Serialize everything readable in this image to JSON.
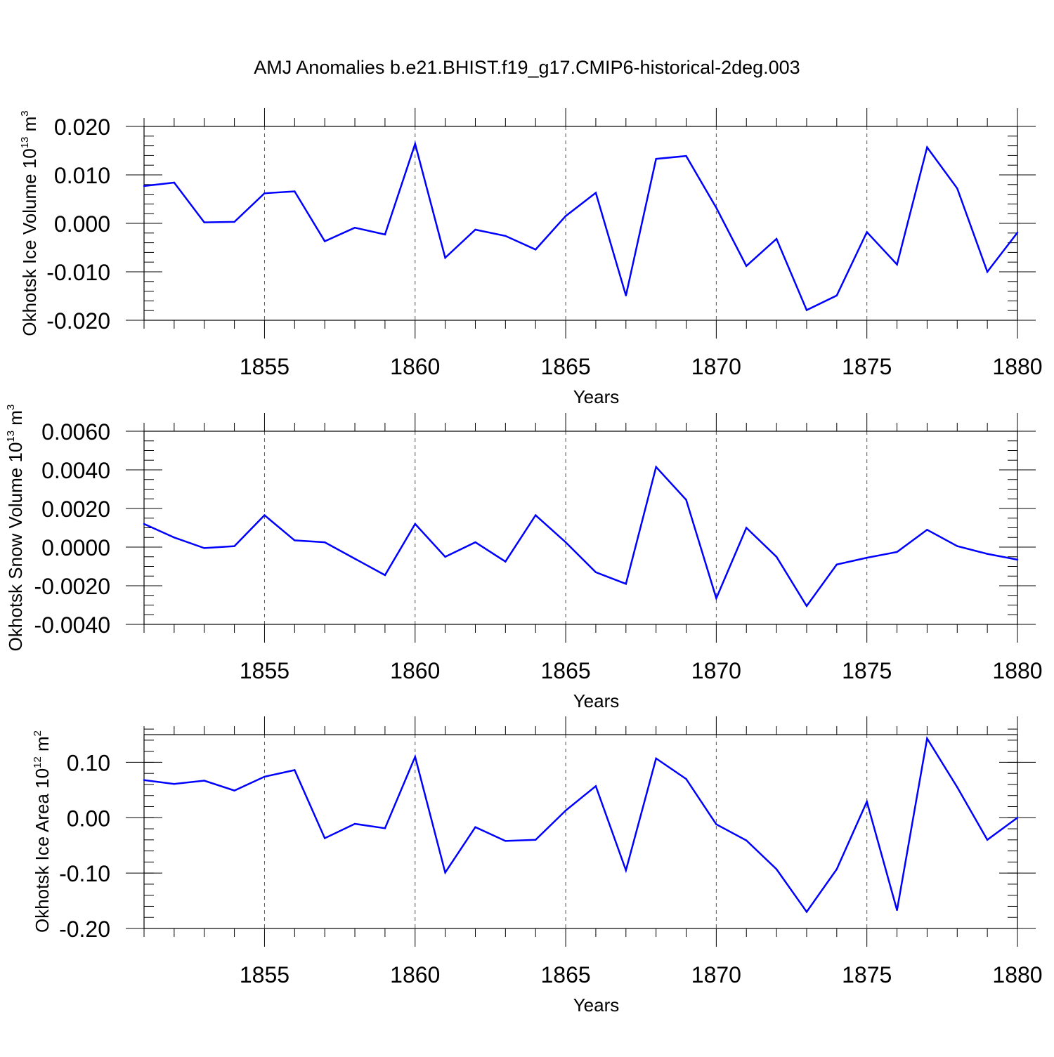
{
  "title": "AMJ Anomalies b.e21.BHIST.f19_g17.CMIP6-historical-2deg.003",
  "colors": {
    "line": "#0000ff",
    "frame": "#000000",
    "grid": "#555555"
  },
  "chart_data": [
    {
      "type": "line",
      "ylabel": {
        "text": "Okhotsk Ice Volume 10",
        "sup": "13",
        "unit": " m",
        "unit_sup": "3"
      },
      "xlabel": "Years",
      "xlim": [
        1851,
        1880
      ],
      "ylim": [
        -0.02,
        0.02
      ],
      "x_ticks": [
        1855,
        1860,
        1865,
        1870,
        1875,
        1880
      ],
      "x_tick_labels": [
        "1855",
        "1860",
        "1865",
        "1870",
        "1875",
        "1880"
      ],
      "y_ticks": [
        0.02,
        0.01,
        0.0,
        -0.01,
        -0.02
      ],
      "y_tick_labels": [
        "0.020",
        "0.010",
        "0.000",
        "-0.010",
        "-0.020"
      ],
      "y_minor_step": 0.002,
      "x": [
        1851,
        1852,
        1853,
        1854,
        1855,
        1856,
        1857,
        1858,
        1859,
        1860,
        1861,
        1862,
        1863,
        1864,
        1865,
        1866,
        1867,
        1868,
        1869,
        1870,
        1871,
        1872,
        1873,
        1874,
        1875,
        1876,
        1877,
        1878,
        1879,
        1880
      ],
      "values": [
        0.0077,
        0.0084,
        0.0002,
        0.0003,
        0.0062,
        0.0066,
        -0.0037,
        -0.0009,
        -0.0023,
        0.0164,
        -0.0071,
        -0.0013,
        -0.0026,
        -0.0054,
        0.0015,
        0.0063,
        -0.0149,
        0.0133,
        0.0139,
        0.0032,
        -0.0088,
        -0.0032,
        -0.0179,
        -0.0149,
        -0.0018,
        -0.0085,
        0.0157,
        0.0072,
        -0.01,
        -0.0019
      ]
    },
    {
      "type": "line",
      "ylabel": {
        "text": "Okhotsk Snow Volume 10",
        "sup": "13",
        "unit": " m",
        "unit_sup": "3"
      },
      "xlabel": "Years",
      "xlim": [
        1851,
        1880
      ],
      "ylim": [
        -0.004,
        0.006
      ],
      "x_ticks": [
        1855,
        1860,
        1865,
        1870,
        1875,
        1880
      ],
      "x_tick_labels": [
        "1855",
        "1860",
        "1865",
        "1870",
        "1875",
        "1880"
      ],
      "y_ticks": [
        0.006,
        0.004,
        0.002,
        0.0,
        -0.002,
        -0.004
      ],
      "y_tick_labels": [
        "0.0060",
        "0.0040",
        "0.0020",
        "0.0000",
        "-0.0020",
        "-0.0040"
      ],
      "y_minor_step": 0.0005,
      "x": [
        1851,
        1852,
        1853,
        1854,
        1855,
        1856,
        1857,
        1858,
        1859,
        1860,
        1861,
        1862,
        1863,
        1864,
        1865,
        1866,
        1867,
        1868,
        1869,
        1870,
        1871,
        1872,
        1873,
        1874,
        1875,
        1876,
        1877,
        1878,
        1879,
        1880
      ],
      "values": [
        0.0012,
        0.0005,
        -5e-05,
        5e-05,
        0.00165,
        0.00035,
        0.00025,
        -0.0006,
        -0.00145,
        0.0012,
        -0.0005,
        0.00025,
        -0.00075,
        0.00165,
        0.00025,
        -0.0013,
        -0.0019,
        0.00415,
        0.00245,
        -0.00265,
        0.001,
        -0.0005,
        -0.00305,
        -0.0009,
        -0.00055,
        -0.00025,
        0.0009,
        5e-05,
        -0.00035,
        -0.00065
      ]
    },
    {
      "type": "line",
      "ylabel": {
        "text": "Okhotsk Ice Area 10",
        "sup": "12",
        "unit": " m",
        "unit_sup": "2"
      },
      "xlabel": "Years",
      "xlim": [
        1851,
        1880
      ],
      "ylim": [
        -0.2,
        0.15
      ],
      "x_ticks": [
        1855,
        1860,
        1865,
        1870,
        1875,
        1880
      ],
      "x_tick_labels": [
        "1855",
        "1860",
        "1865",
        "1870",
        "1875",
        "1880"
      ],
      "y_ticks": [
        0.1,
        0.0,
        -0.1,
        -0.2
      ],
      "y_tick_labels": [
        "0.10",
        "0.00",
        "-0.10",
        "-0.20"
      ],
      "y_minor_step": 0.02,
      "x": [
        1851,
        1852,
        1853,
        1854,
        1855,
        1856,
        1857,
        1858,
        1859,
        1860,
        1861,
        1862,
        1863,
        1864,
        1865,
        1866,
        1867,
        1868,
        1869,
        1870,
        1871,
        1872,
        1873,
        1874,
        1875,
        1876,
        1877,
        1878,
        1879,
        1880
      ],
      "values": [
        0.068,
        0.061,
        0.067,
        0.049,
        0.074,
        0.086,
        -0.037,
        -0.011,
        -0.019,
        0.11,
        -0.099,
        -0.017,
        -0.042,
        -0.04,
        0.013,
        0.057,
        -0.095,
        0.107,
        0.07,
        -0.012,
        -0.041,
        -0.093,
        -0.17,
        -0.093,
        0.029,
        -0.167,
        0.143,
        0.055,
        -0.04,
        0.0
      ]
    }
  ]
}
